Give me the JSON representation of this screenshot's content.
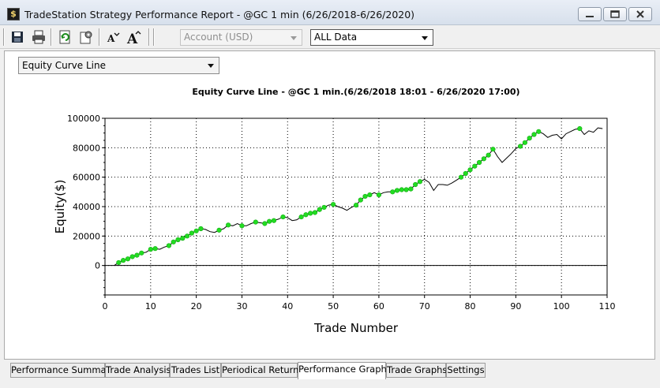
{
  "window": {
    "title": "TradeStation Strategy Performance Report - @GC 1 min (6/26/2018-6/26/2020)",
    "controls": [
      "minimize",
      "restore",
      "close"
    ]
  },
  "toolbar": {
    "buttons": [
      "save-icon",
      "print-icon",
      "refresh-icon",
      "settings-icon",
      "decrease-font-icon",
      "increase-font-icon"
    ],
    "account_combo": {
      "value": "Account (USD)",
      "enabled": false
    },
    "filter_combo": {
      "value": "ALL Data",
      "enabled": true
    }
  },
  "graph_selector": {
    "value": "Equity Curve Line"
  },
  "chart_data": {
    "type": "line",
    "title": "Equity Curve Line - @GC 1 min.(6/26/2018 18:01 - 6/26/2020 17:00)",
    "xlabel": "Trade Number",
    "ylabel": "Equity($)",
    "xlim": [
      0,
      110
    ],
    "ylim": [
      -20000,
      100000
    ],
    "x_ticks": [
      "0",
      "10",
      "20",
      "30",
      "40",
      "50",
      "60",
      "70",
      "80",
      "90",
      "100",
      "110"
    ],
    "y_ticks": [
      "100000",
      "80000",
      "60000",
      "40000",
      "20000",
      "0"
    ],
    "grid": true,
    "line_color": "#000000",
    "marker_color": "#22dd22",
    "series": [
      {
        "x": [
          2,
          3,
          4,
          5,
          6,
          7,
          8,
          9,
          10,
          11,
          12,
          13,
          14,
          15,
          16,
          17,
          18,
          19,
          20,
          21,
          22,
          23,
          24,
          25,
          26,
          27,
          28,
          29,
          30,
          31,
          32,
          33,
          34,
          35,
          36,
          37,
          38,
          39,
          40,
          41,
          42,
          43,
          44,
          45,
          46,
          47,
          48,
          49,
          50,
          51,
          52,
          53,
          54,
          55,
          56,
          57,
          58,
          59,
          60,
          61,
          62,
          63,
          64,
          65,
          66,
          67,
          68,
          69,
          70,
          71,
          72,
          73,
          74,
          75,
          76,
          77,
          78,
          79,
          80,
          81,
          82,
          83,
          84,
          85,
          86,
          87,
          88,
          89,
          90,
          91,
          92,
          93,
          94,
          95,
          96,
          97,
          98,
          99,
          100,
          101,
          102,
          103,
          104,
          105,
          106,
          107,
          108,
          109
        ],
        "y": [
          0,
          2000,
          3500,
          4500,
          6000,
          7000,
          8500,
          9000,
          11000,
          11500,
          11000,
          12500,
          13500,
          16000,
          17500,
          18500,
          20000,
          22000,
          23500,
          25000,
          24500,
          23000,
          22500,
          24000,
          25000,
          27500,
          27000,
          28500,
          27000,
          27000,
          28500,
          29500,
          29000,
          28500,
          30000,
          30500,
          31500,
          33000,
          32500,
          30500,
          31000,
          33000,
          34500,
          35500,
          36000,
          38000,
          39500,
          41000,
          41500,
          40000,
          39000,
          37500,
          39500,
          41000,
          44500,
          47000,
          48000,
          49500,
          48000,
          49500,
          50000,
          50000,
          51000,
          51500,
          51500,
          52000,
          55000,
          57000,
          58500,
          56500,
          51000,
          55000,
          55000,
          54500,
          56000,
          58000,
          60000,
          62500,
          65000,
          67500,
          70000,
          72500,
          75000,
          79000,
          74000,
          70000,
          73000,
          76000,
          79500,
          81000,
          83500,
          86500,
          89000,
          91000,
          89500,
          87000,
          88500,
          89000,
          86000,
          89500,
          91000,
          92500,
          93000,
          89000,
          91500,
          90500,
          93500,
          93000
        ],
        "markers": [
          3,
          4,
          5,
          6,
          7,
          8,
          10,
          11,
          14,
          15,
          16,
          17,
          18,
          19,
          20,
          21,
          25,
          27,
          30,
          33,
          35,
          36,
          37,
          39,
          43,
          44,
          45,
          46,
          47,
          48,
          50,
          55,
          56,
          57,
          58,
          60,
          63,
          64,
          65,
          66,
          67,
          68,
          69,
          78,
          79,
          80,
          81,
          82,
          83,
          84,
          85,
          91,
          92,
          93,
          94,
          95,
          104
        ]
      }
    ]
  },
  "tabs": [
    {
      "label": "Performance Summary",
      "active": false
    },
    {
      "label": "Trade Analysis",
      "active": false
    },
    {
      "label": "Trades List",
      "active": false
    },
    {
      "label": "Periodical Returns",
      "active": false
    },
    {
      "label": "Performance Graphs",
      "active": true
    },
    {
      "label": "Trade Graphs",
      "active": false
    },
    {
      "label": "Settings",
      "active": false
    }
  ]
}
